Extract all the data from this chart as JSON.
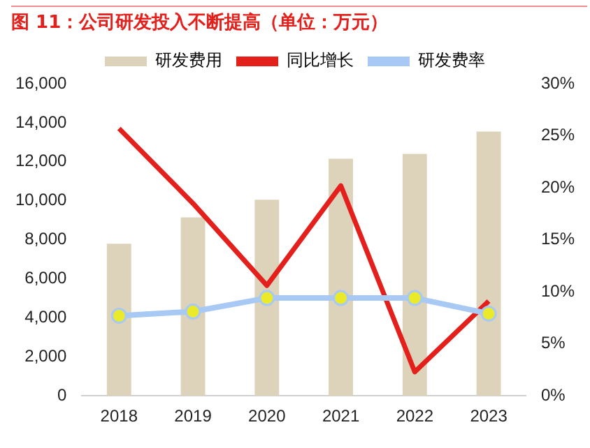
{
  "chart_data": {
    "type": "bar",
    "title": "图 11：公司研发投入不断提高（单位：万元）",
    "categories": [
      "2018",
      "2019",
      "2020",
      "2021",
      "2022",
      "2023"
    ],
    "series": [
      {
        "name": "研发费用",
        "color": "#ddd3bb",
        "values": [
          7800,
          9150,
          10050,
          12150,
          12400,
          13550
        ]
      },
      {
        "name": "同比增长",
        "type": "line",
        "axis": "y2",
        "color": "#e3201b",
        "marker": "none",
        "values": [
          25.7,
          18.5,
          10.6,
          20.2,
          2.3,
          9.1
        ]
      },
      {
        "name": "研发费率",
        "type": "line",
        "axis": "y2",
        "color": "#a9c9f5",
        "marker": "circle",
        "values": [
          7.7,
          8.1,
          9.4,
          9.4,
          9.4,
          7.9
        ]
      }
    ],
    "ylim": [
      0,
      16000
    ],
    "yticks": [
      {
        "value": 0,
        "label": "0"
      },
      {
        "value": 2000,
        "label": "2,000"
      },
      {
        "value": 4000,
        "label": "4,000"
      },
      {
        "value": 6000,
        "label": "6,000"
      },
      {
        "value": 8000,
        "label": "8,000"
      },
      {
        "value": 10000,
        "label": "10,000"
      },
      {
        "value": 12000,
        "label": "12,000"
      },
      {
        "value": 14000,
        "label": "14,000"
      },
      {
        "value": 16000,
        "label": "16,000"
      }
    ],
    "y2lim": [
      0,
      30
    ],
    "y2ticks": [
      {
        "value": 0,
        "label": "0%"
      },
      {
        "value": 5,
        "label": "5%"
      },
      {
        "value": 10,
        "label": "10%"
      },
      {
        "value": 15,
        "label": "15%"
      },
      {
        "value": 20,
        "label": "20%"
      },
      {
        "value": 25,
        "label": "25%"
      },
      {
        "value": 30,
        "label": "30%"
      }
    ],
    "grid": false,
    "legend": "top"
  }
}
